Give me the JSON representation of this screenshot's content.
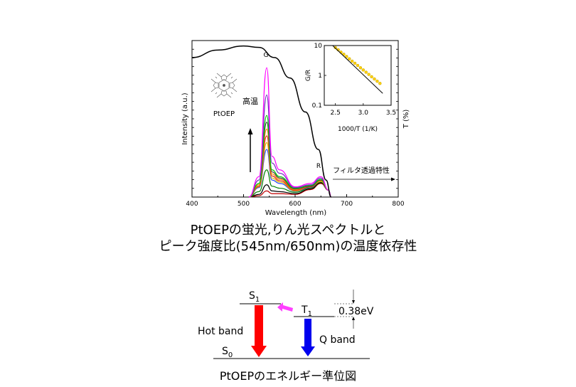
{
  "chart_data": [
    {
      "type": "line",
      "xlabel": "Wavelength (nm)",
      "ylabel": "Intensity (a.u.)",
      "right_label": "T (%)",
      "x_ticks": [
        "400",
        "500",
        "600",
        "700",
        "800"
      ],
      "xlim": [
        400,
        800
      ],
      "peak_labels": [
        "G",
        "R"
      ],
      "annotations": {
        "high_temp": "高温",
        "molecule": "PtOEP",
        "filter": "フィルタ透過特性"
      },
      "series": [
        {
          "color": "#ff00ff",
          "values": [
            [
              510,
              0
            ],
            [
              530,
              3
            ],
            [
              545,
              19
            ],
            [
              555,
              6
            ],
            [
              570,
              4
            ],
            [
              600,
              1.5
            ],
            [
              630,
              2
            ],
            [
              650,
              3
            ],
            [
              665,
              1
            ],
            [
              670,
              0
            ]
          ]
        },
        {
          "color": "#7030c0",
          "values": [
            [
              510,
              0
            ],
            [
              530,
              2.5
            ],
            [
              545,
              15
            ],
            [
              555,
              5
            ],
            [
              570,
              3.5
            ],
            [
              600,
              1.4
            ],
            [
              630,
              1.8
            ],
            [
              650,
              2.8
            ],
            [
              665,
              1
            ],
            [
              670,
              0
            ]
          ]
        },
        {
          "color": "#00d000",
          "values": [
            [
              510,
              0
            ],
            [
              530,
              2
            ],
            [
              545,
              12
            ],
            [
              555,
              4
            ],
            [
              570,
              3
            ],
            [
              600,
              1.3
            ],
            [
              630,
              1.7
            ],
            [
              650,
              2.6
            ],
            [
              665,
              1
            ],
            [
              670,
              0
            ]
          ]
        },
        {
          "color": "#404040",
          "values": [
            [
              510,
              0
            ],
            [
              530,
              2
            ],
            [
              545,
              11
            ],
            [
              555,
              3.7
            ],
            [
              570,
              2.8
            ],
            [
              600,
              1.2
            ],
            [
              630,
              1.6
            ],
            [
              650,
              2.5
            ],
            [
              665,
              1
            ],
            [
              670,
              0
            ]
          ]
        },
        {
          "color": "#ff9000",
          "values": [
            [
              510,
              0
            ],
            [
              530,
              1.8
            ],
            [
              545,
              10
            ],
            [
              555,
              3.4
            ],
            [
              570,
              2.6
            ],
            [
              600,
              1.1
            ],
            [
              630,
              1.6
            ],
            [
              650,
              2.4
            ],
            [
              665,
              1
            ],
            [
              670,
              0
            ]
          ]
        },
        {
          "color": "#e02020",
          "values": [
            [
              510,
              0
            ],
            [
              530,
              1.6
            ],
            [
              545,
              9
            ],
            [
              555,
              3.1
            ],
            [
              570,
              2.4
            ],
            [
              600,
              1.0
            ],
            [
              630,
              1.5
            ],
            [
              650,
              2.4
            ],
            [
              665,
              1
            ],
            [
              670,
              0
            ]
          ]
        },
        {
          "color": "#e0c000",
          "values": [
            [
              510,
              0
            ],
            [
              530,
              1.5
            ],
            [
              545,
              8
            ],
            [
              555,
              2.8
            ],
            [
              570,
              2.2
            ],
            [
              600,
              0.9
            ],
            [
              630,
              1.5
            ],
            [
              650,
              2.3
            ],
            [
              665,
              1
            ],
            [
              670,
              0
            ]
          ]
        },
        {
          "color": "#2040ff",
          "values": [
            [
              510,
              0
            ],
            [
              530,
              1.4
            ],
            [
              545,
              7
            ],
            [
              555,
              2.5
            ],
            [
              570,
              2.0
            ],
            [
              600,
              0.85
            ],
            [
              630,
              1.45
            ],
            [
              650,
              2.3
            ],
            [
              665,
              1
            ],
            [
              670,
              0
            ]
          ]
        },
        {
          "color": "#008000",
          "values": [
            [
              510,
              0
            ],
            [
              530,
              0.8
            ],
            [
              545,
              4
            ],
            [
              555,
              1.6
            ],
            [
              570,
              1.3
            ],
            [
              600,
              0.7
            ],
            [
              630,
              1.35
            ],
            [
              650,
              2.2
            ],
            [
              665,
              1
            ],
            [
              670,
              0
            ]
          ]
        },
        {
          "color": "#000000",
          "values": [
            [
              510,
              0
            ],
            [
              530,
              0.4
            ],
            [
              545,
              1.8
            ],
            [
              555,
              0.9
            ],
            [
              570,
              0.8
            ],
            [
              600,
              0.5
            ],
            [
              630,
              1.2
            ],
            [
              650,
              2.1
            ],
            [
              665,
              1
            ],
            [
              670,
              0
            ]
          ]
        },
        {
          "color": "#c00000",
          "values": [
            [
              510,
              0
            ],
            [
              530,
              0.2
            ],
            [
              545,
              0.9
            ],
            [
              555,
              0.5
            ],
            [
              570,
              0.5
            ],
            [
              600,
              0.4
            ],
            [
              630,
              1.1
            ],
            [
              650,
              2.0
            ],
            [
              665,
              1
            ],
            [
              670,
              0
            ]
          ]
        }
      ],
      "filter_curve": {
        "color": "#000000",
        "values": [
          [
            400,
            20.5
          ],
          [
            450,
            21.6
          ],
          [
            500,
            22.2
          ],
          [
            530,
            22.0
          ],
          [
            560,
            20.5
          ],
          [
            590,
            17.5
          ],
          [
            620,
            12.5
          ],
          [
            645,
            7
          ],
          [
            660,
            2.5
          ],
          [
            670,
            0
          ]
        ]
      },
      "inset": {
        "type": "scatter",
        "xlabel": "1000/T (1/K)",
        "ylabel": "G/R",
        "x_ticks": [
          "2.5",
          "3.0",
          "3.5"
        ],
        "y_ticks": [
          "10",
          "1",
          "0.1"
        ],
        "xlim": [
          2.3,
          3.5
        ],
        "ylim_log": [
          0.1,
          10
        ],
        "points": [
          [
            2.5,
            8.5
          ],
          [
            2.55,
            7.2
          ],
          [
            2.6,
            6.0
          ],
          [
            2.65,
            5.1
          ],
          [
            2.7,
            4.3
          ],
          [
            2.75,
            3.6
          ],
          [
            2.8,
            3.0
          ],
          [
            2.85,
            2.55
          ],
          [
            2.9,
            2.15
          ],
          [
            2.95,
            1.8
          ],
          [
            3.0,
            1.52
          ],
          [
            3.05,
            1.28
          ],
          [
            3.1,
            1.08
          ],
          [
            3.15,
            0.9
          ],
          [
            3.2,
            0.76
          ],
          [
            3.25,
            0.64
          ],
          [
            3.3,
            0.54
          ]
        ],
        "fit": [
          [
            2.45,
            10
          ],
          [
            3.35,
            0.25
          ]
        ]
      }
    },
    {
      "type": "energy-diagram",
      "levels": {
        "s1": "S1",
        "t1": "T1",
        "s0": "S0"
      },
      "gap": "0.38eV",
      "hot_band": "Hot band",
      "q_band": "Q band"
    }
  ],
  "captions": {
    "line1": "PtOEPの蛍光,りん光スペクトルと",
    "line2": "ピーク強度比(545nm/650nm)の温度依存性",
    "line3": "PtOEPのエネルギー準位図"
  },
  "colors": {
    "hot_band": "#ff0000",
    "q_band": "#0000ee",
    "isc_arrow": "#ff40ff",
    "inset_points": "#ffd200"
  }
}
